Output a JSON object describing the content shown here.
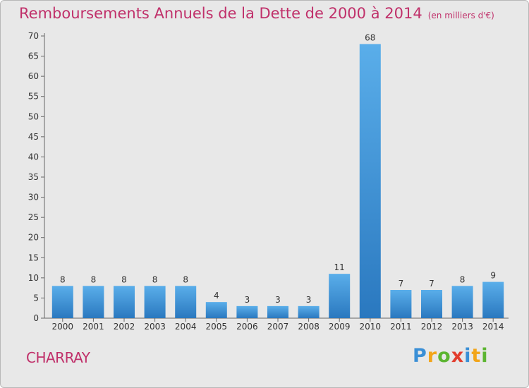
{
  "header": {
    "title": "Remboursements Annuels de la Dette de 2000 à 2014",
    "unit": "(en milliers d'€)"
  },
  "commune": "CHARRAY",
  "logo": {
    "letters": [
      "P",
      "r",
      "o",
      "x",
      "i",
      "t",
      "i"
    ],
    "colors": [
      "#3a8fd6",
      "#f2a51a",
      "#5cb531",
      "#e23c2d",
      "#3a8fd6",
      "#f2a51a",
      "#5cb531"
    ]
  },
  "chart_data": {
    "type": "bar",
    "title": "Remboursements Annuels de la Dette de 2000 à 2014",
    "subtitle": "(en milliers d'€)",
    "xlabel": "",
    "ylabel": "",
    "categories": [
      "2000",
      "2001",
      "2002",
      "2003",
      "2004",
      "2005",
      "2006",
      "2007",
      "2008",
      "2009",
      "2010",
      "2011",
      "2012",
      "2013",
      "2014"
    ],
    "values": [
      8,
      8,
      8,
      8,
      8,
      4,
      3,
      3,
      3,
      11,
      68,
      7,
      7,
      8,
      9
    ],
    "ylim": [
      0,
      70
    ],
    "yticks": [
      0,
      5,
      10,
      15,
      20,
      25,
      30,
      35,
      40,
      45,
      50,
      55,
      60,
      65,
      70
    ],
    "grid": false,
    "legend": "none",
    "bar_color_top": "#5aaeea",
    "bar_color_bottom": "#2a78bf"
  }
}
